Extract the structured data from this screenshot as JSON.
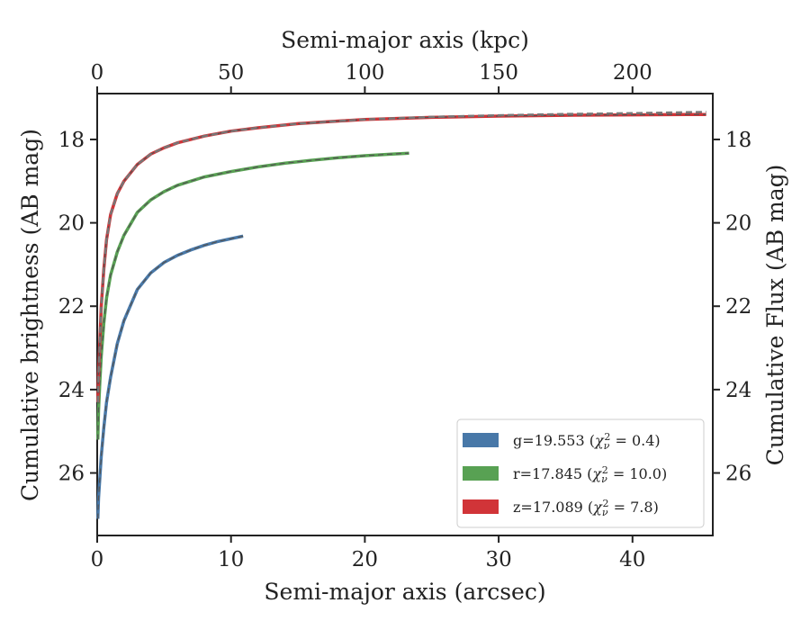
{
  "chart_data": {
    "type": "line",
    "xlabel": "Semi-major axis (arcsec)",
    "xlabel_top": "Semi-major axis (kpc)",
    "ylabel": "Cumulative brightness (AB mag)",
    "ylabel_right": "Cumulative Flux (AB mag)",
    "xlim": [
      0,
      46
    ],
    "xlim_top_kpc": [
      0,
      230
    ],
    "ylim": [
      27.5,
      16.9
    ],
    "y_inverted": true,
    "x_ticks": [
      "0",
      "10",
      "20",
      "30",
      "40"
    ],
    "x_ticks_top": [
      "0",
      "50",
      "100",
      "150",
      "200"
    ],
    "y_ticks": [
      "18",
      "20",
      "22",
      "24",
      "26"
    ],
    "legend_position": "lower-right",
    "legend": [
      {
        "band": "g",
        "label": "g=19.553 (",
        "chi_value": "0.4",
        "color": "#4878a8"
      },
      {
        "band": "r",
        "label": "r=17.845 (",
        "chi_value": "10.0",
        "color": "#58a153"
      },
      {
        "band": "z",
        "label": "z=17.089 (",
        "chi_value": "7.8",
        "color": "#d13438"
      }
    ],
    "chi_symbol": "χ",
    "chi_sub": "ν",
    "chi_sup": "2",
    "chi_eq": " = ",
    "chi_close": ")",
    "series": [
      {
        "band": "g",
        "color": "#4878a8",
        "x": [
          0.05,
          0.1,
          0.2,
          0.3,
          0.5,
          0.7,
          1.0,
          1.5,
          2.0,
          3.0,
          4.0,
          5.0,
          6.0,
          7.0,
          8.0,
          9.0,
          10.0,
          10.9
        ],
        "y": [
          27.1,
          26.6,
          26.1,
          25.6,
          24.9,
          24.3,
          23.7,
          22.9,
          22.35,
          21.6,
          21.2,
          20.95,
          20.78,
          20.65,
          20.54,
          20.45,
          20.38,
          20.32
        ]
      },
      {
        "band": "r",
        "color": "#58a153",
        "x": [
          0.05,
          0.1,
          0.2,
          0.3,
          0.5,
          0.7,
          1.0,
          1.5,
          2.0,
          3.0,
          4.0,
          5.0,
          6.0,
          8.0,
          10.0,
          12.0,
          14.0,
          16.0,
          18.0,
          20.0,
          22.0,
          23.3
        ],
        "y": [
          25.2,
          24.5,
          23.8,
          23.2,
          22.4,
          21.8,
          21.25,
          20.7,
          20.3,
          19.75,
          19.45,
          19.25,
          19.1,
          18.9,
          18.77,
          18.66,
          18.57,
          18.5,
          18.44,
          18.39,
          18.35,
          18.33
        ]
      },
      {
        "band": "z",
        "color": "#d13438",
        "x": [
          0.05,
          0.1,
          0.2,
          0.3,
          0.5,
          0.7,
          1.0,
          1.5,
          2.0,
          3.0,
          4.0,
          5.0,
          6.0,
          8.0,
          10.0,
          12.0,
          15.0,
          20.0,
          25.0,
          30.0,
          35.0,
          40.0,
          45.5
        ],
        "y": [
          24.3,
          23.6,
          22.8,
          22.0,
          21.1,
          20.4,
          19.8,
          19.3,
          19.0,
          18.6,
          18.35,
          18.2,
          18.08,
          17.92,
          17.8,
          17.72,
          17.62,
          17.52,
          17.47,
          17.44,
          17.42,
          17.41,
          17.4
        ]
      },
      {
        "band": "z-model",
        "color": "#777777",
        "dashed": true,
        "x": [
          0.05,
          0.1,
          0.2,
          0.3,
          0.5,
          0.7,
          1.0,
          1.5,
          2.0,
          3.0,
          4.0,
          5.0,
          6.0,
          8.0,
          10.0,
          12.0,
          15.0,
          20.0,
          25.0,
          30.0,
          35.0,
          40.0,
          45.5
        ],
        "y": [
          24.3,
          23.6,
          22.8,
          22.0,
          21.1,
          20.4,
          19.8,
          19.3,
          19.0,
          18.6,
          18.35,
          18.2,
          18.08,
          17.92,
          17.8,
          17.72,
          17.62,
          17.52,
          17.46,
          17.42,
          17.39,
          17.37,
          17.34
        ]
      }
    ]
  }
}
